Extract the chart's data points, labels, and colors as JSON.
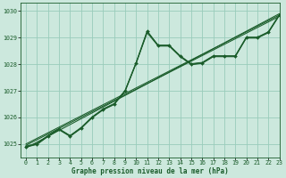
{
  "title": "Graphe pression niveau de la mer (hPa)",
  "bg_color": "#cce8dd",
  "grid_color": "#99ccbb",
  "line_color": "#1a5c2a",
  "xlim": [
    -0.5,
    23
  ],
  "ylim": [
    1024.5,
    1030.3
  ],
  "yticks": [
    1025,
    1026,
    1027,
    1028,
    1029,
    1030
  ],
  "xticks": [
    0,
    1,
    2,
    3,
    4,
    5,
    6,
    7,
    8,
    9,
    10,
    11,
    12,
    13,
    14,
    15,
    16,
    17,
    18,
    19,
    20,
    21,
    22,
    23
  ],
  "main_x": [
    0,
    1,
    2,
    3,
    4,
    5,
    6,
    7,
    8,
    9,
    10,
    11,
    12,
    13,
    14,
    15,
    16,
    17,
    18,
    19,
    20,
    21,
    22,
    23
  ],
  "main_y": [
    1024.9,
    1025.0,
    1025.3,
    1025.55,
    1025.3,
    1025.6,
    1026.0,
    1026.3,
    1026.5,
    1027.0,
    1028.05,
    1029.25,
    1028.7,
    1028.7,
    1028.3,
    1028.0,
    1028.05,
    1028.3,
    1028.3,
    1028.3,
    1029.0,
    1029.0,
    1029.2,
    1029.85
  ],
  "trend_x": [
    0,
    23
  ],
  "trend_y": [
    1025.0,
    1029.85
  ],
  "extra1_x": [
    0,
    1,
    2,
    3,
    4,
    5,
    6,
    7,
    8,
    9,
    10,
    11,
    12,
    13,
    14,
    15,
    16,
    17,
    18,
    19,
    20,
    21,
    22,
    23
  ],
  "extra1_y": [
    1024.92,
    1025.02,
    1025.32,
    1025.57,
    1025.32,
    1025.62,
    1026.02,
    1026.32,
    1026.52,
    1027.02,
    1028.07,
    1029.22,
    1028.72,
    1028.72,
    1028.32,
    1028.02,
    1028.07,
    1028.32,
    1028.32,
    1028.32,
    1029.02,
    1029.02,
    1029.22,
    1029.87
  ],
  "extra2_x": [
    0,
    1,
    2,
    3,
    4,
    5,
    6,
    7,
    8,
    9,
    10,
    11,
    12,
    13,
    14,
    15,
    16,
    17,
    18,
    19,
    20,
    21,
    22,
    23
  ],
  "extra2_y": [
    1024.88,
    1024.98,
    1025.28,
    1025.53,
    1025.28,
    1025.58,
    1025.98,
    1026.28,
    1026.48,
    1026.98,
    1028.03,
    1029.18,
    1028.68,
    1028.68,
    1028.28,
    1027.98,
    1028.03,
    1028.28,
    1028.28,
    1028.28,
    1028.98,
    1028.98,
    1029.18,
    1029.83
  ],
  "trend2_x": [
    0,
    23
  ],
  "trend2_y": [
    1024.95,
    1029.8
  ],
  "trend3_x": [
    0,
    23
  ],
  "trend3_y": [
    1024.85,
    1029.9
  ],
  "marker": "D",
  "marker_size": 2.0,
  "linewidth": 0.9,
  "label_fontsize": 5.5,
  "tick_fontsize": 4.8
}
